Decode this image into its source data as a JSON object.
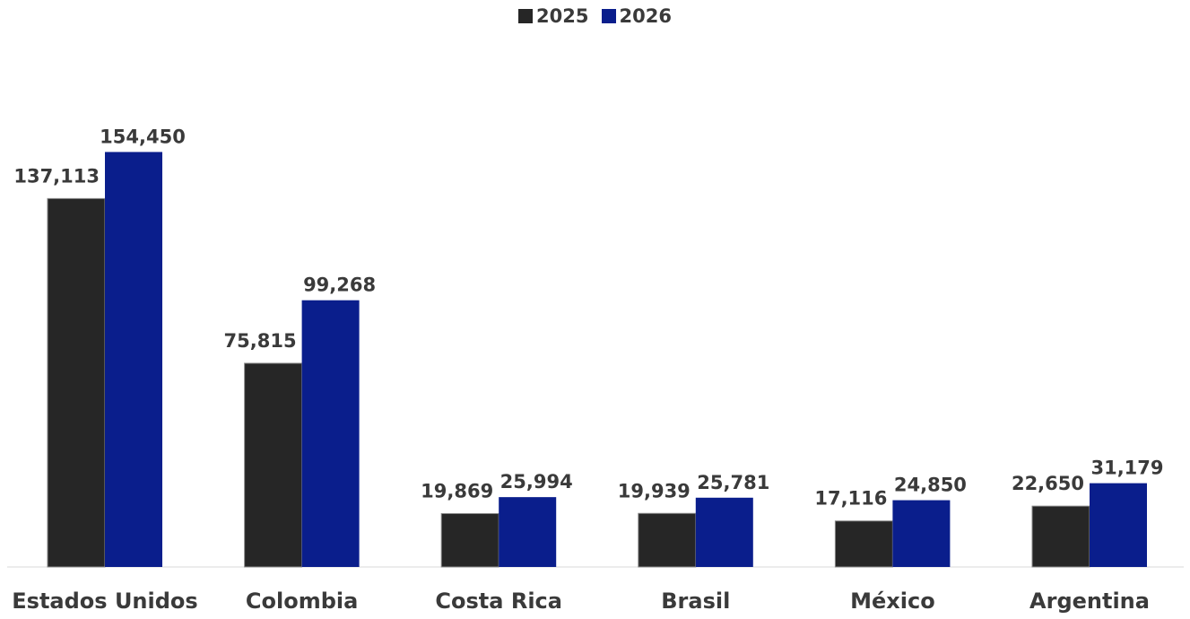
{
  "chart_data": {
    "type": "bar",
    "categories": [
      "Estados Unidos",
      "Colombia",
      "Costa Rica",
      "Brasil",
      "México",
      "Argentina"
    ],
    "series": [
      {
        "name": "2025",
        "values": [
          137113,
          75815,
          19869,
          19939,
          17116,
          22650
        ],
        "labels": [
          "137,113",
          "75,815",
          "19,869",
          "19,939",
          "17,116",
          "22,650"
        ],
        "color": "#262626"
      },
      {
        "name": "2026",
        "values": [
          154450,
          99268,
          25994,
          25781,
          24850,
          31179
        ],
        "labels": [
          "154,450",
          "99,268",
          "25,994",
          "25,781",
          "24,850",
          "31,179"
        ],
        "color": "#0a1e8c"
      }
    ],
    "title": "",
    "xlabel": "",
    "ylabel": "",
    "ylim": [
      0,
      210000
    ],
    "grid": false,
    "legend_position": "top-center"
  },
  "colors": {
    "text": "#3a3a3a",
    "axis": "#7f7f7f"
  }
}
